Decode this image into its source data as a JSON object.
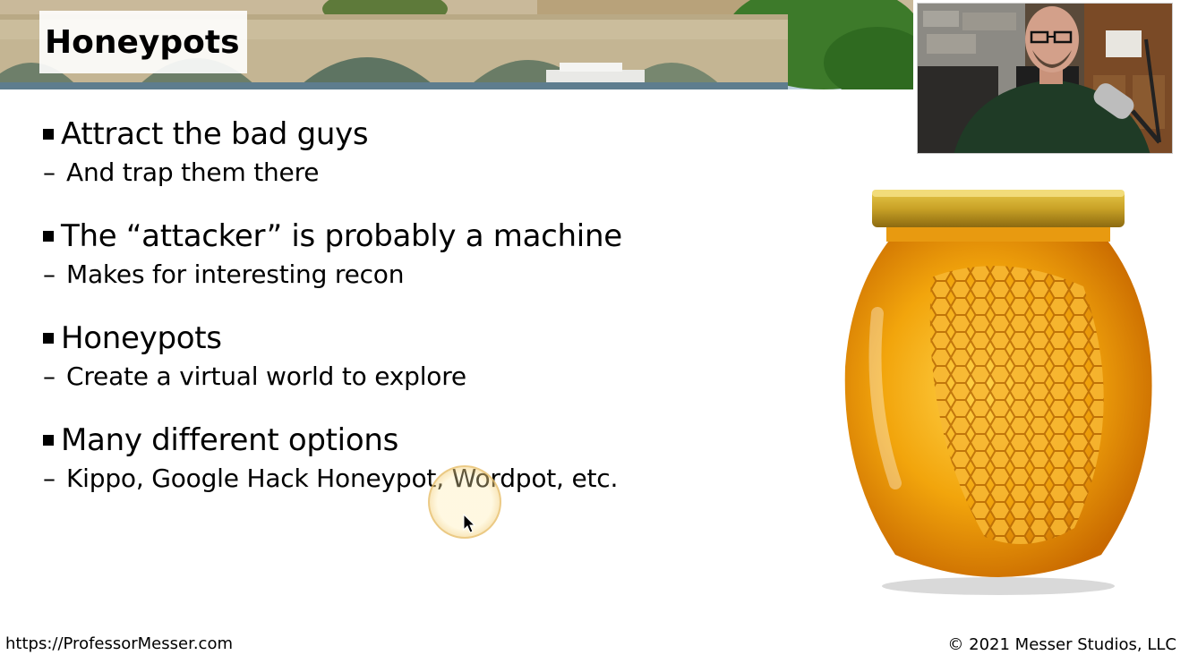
{
  "slide": {
    "title": "Honeypots",
    "bullets": [
      {
        "text": "Attract the bad guys",
        "sub": "And trap them there"
      },
      {
        "text": "The “attacker” is probably a machine",
        "sub": "Makes for interesting recon"
      },
      {
        "text": "Honeypots",
        "sub": "Create a virtual world to explore"
      },
      {
        "text": "Many different options",
        "sub": "Kippo, Google Hack Honeypot, Wordpot, etc."
      }
    ],
    "sub_dash": "–"
  },
  "footer": {
    "url": "https://ProfessorMesser.com",
    "copyright": "© 2021 Messer Studios, LLC"
  },
  "images": {
    "banner": "bridge-photo",
    "webcam": "presenter-video",
    "illustration": "honey-jar-image"
  },
  "colors": {
    "honey": "#F2A50C",
    "lid": "#C9A227",
    "sky": "#CFE0EE"
  }
}
